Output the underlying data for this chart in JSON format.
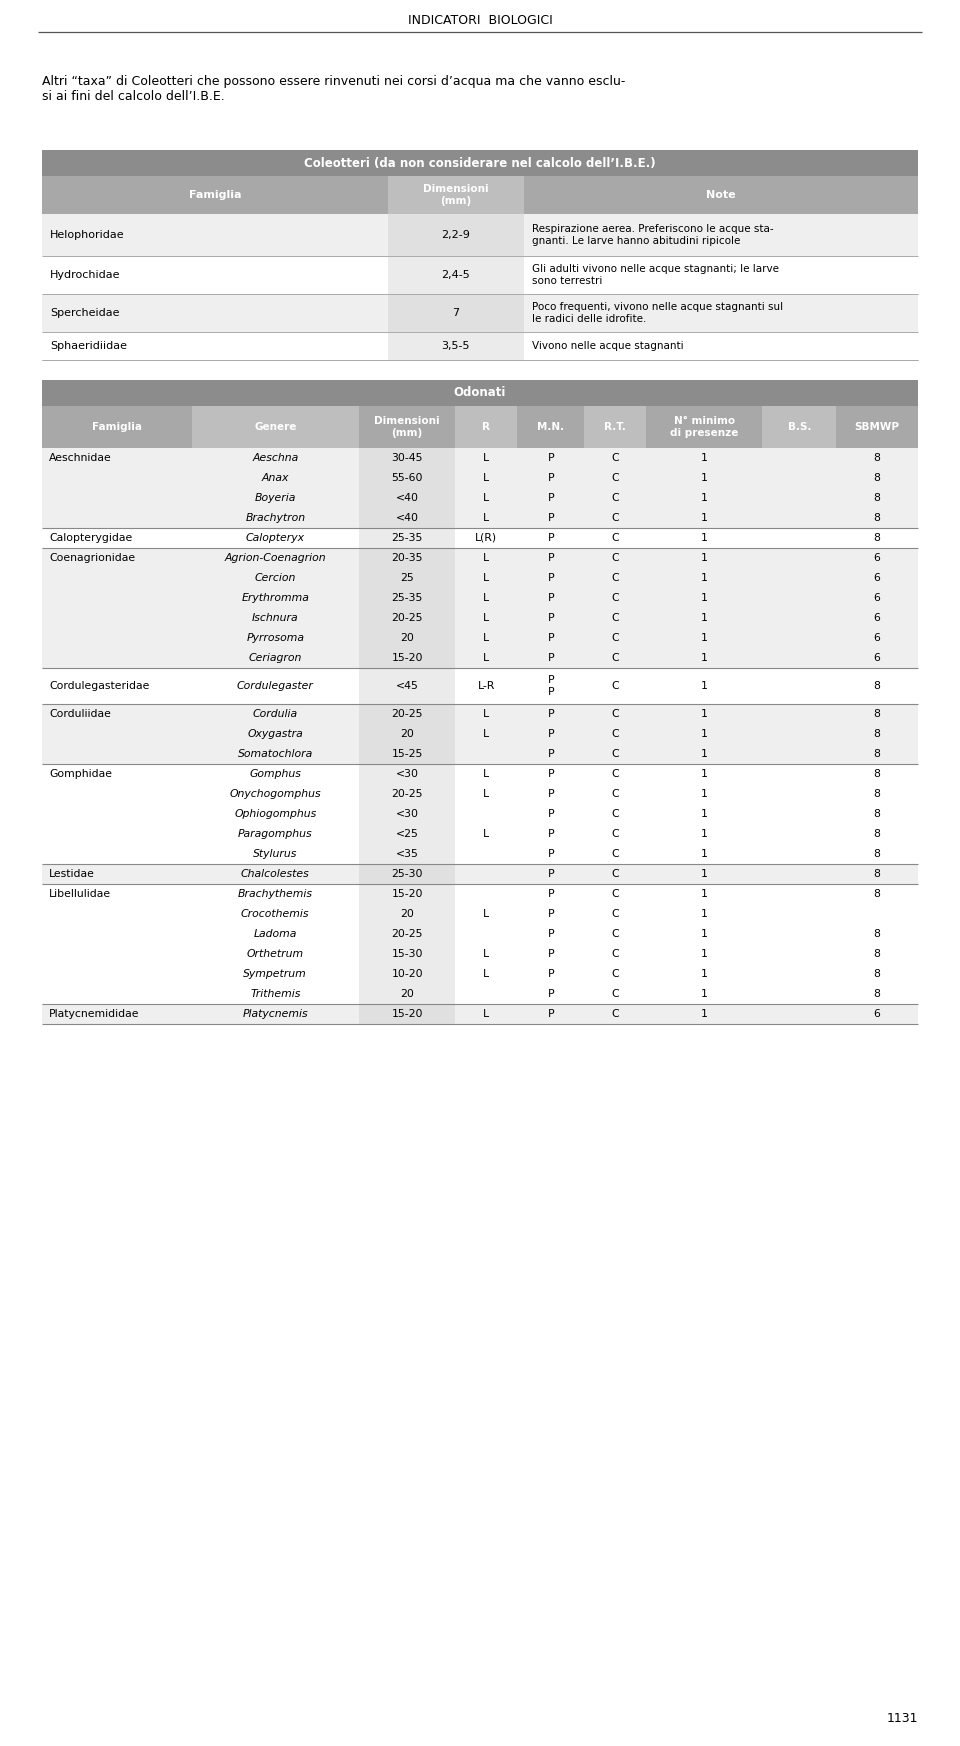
{
  "page_title": "INDICATORI  BIOLOGICI",
  "intro_text": "Altri “taxa” di Coleotteri che possono essere rinvenuti nei corsi d’acqua ma che vanno esclu-\nsi ai fini del calcolo dell’I.B.E.",
  "coleotteri_title": "Coleotteri (da non considerare nel calcolo dell’I.B.E.)",
  "odonati_title": "Odonati",
  "odonati_col_headers": [
    "Famiglia",
    "Genere",
    "Dimensioni\n(mm)",
    "R",
    "M.N.",
    "R.T.",
    "N° minimo\ndi presenze",
    "B.S.",
    "SBMWP"
  ],
  "coleotteri_rows": [
    {
      "famiglia": "Helophoridae",
      "dim": "2,2-9",
      "note": "Respirazione aerea. Preferiscono le acque sta-\ngnanti. Le larve hanno abitudini ripicole"
    },
    {
      "famiglia": "Hydrochidae",
      "dim": "2,4-5",
      "note": "Gli adulti vivono nelle acque stagnanti; le larve\nsono terrestri"
    },
    {
      "famiglia": "Spercheidae",
      "dim": "7",
      "note": "Poco frequenti, vivono nelle acque stagnanti sul\nle radici delle idrofite."
    },
    {
      "famiglia": "Sphaeridiidae",
      "dim": "3,5-5",
      "note": "Vivono nelle acque stagnanti"
    }
  ],
  "odonati_rows": [
    {
      "famiglia": "Aeschnidae",
      "genere": "Aeschna",
      "dim": "30-45",
      "R": "L",
      "MN": "P",
      "RT": "C",
      "Nmin": "1",
      "BS": "",
      "SBMWP": "8"
    },
    {
      "famiglia": "",
      "genere": "Anax",
      "dim": "55-60",
      "R": "L",
      "MN": "P",
      "RT": "C",
      "Nmin": "1",
      "BS": "",
      "SBMWP": "8"
    },
    {
      "famiglia": "",
      "genere": "Boyeria",
      "dim": "<40",
      "R": "L",
      "MN": "P",
      "RT": "C",
      "Nmin": "1",
      "BS": "",
      "SBMWP": "8"
    },
    {
      "famiglia": "",
      "genere": "Brachytron",
      "dim": "<40",
      "R": "L",
      "MN": "P",
      "RT": "C",
      "Nmin": "1",
      "BS": "",
      "SBMWP": "8"
    },
    {
      "famiglia": "Calopterygidae",
      "genere": "Calopteryx",
      "dim": "25-35",
      "R": "L(R)",
      "MN": "P",
      "RT": "C",
      "Nmin": "1",
      "BS": "",
      "SBMWP": "8"
    },
    {
      "famiglia": "Coenagrionidae",
      "genere": "Agrion-Coenagrion",
      "dim": "20-35",
      "R": "L",
      "MN": "P",
      "RT": "C",
      "Nmin": "1",
      "BS": "",
      "SBMWP": "6"
    },
    {
      "famiglia": "",
      "genere": "Cercion",
      "dim": "25",
      "R": "L",
      "MN": "P",
      "RT": "C",
      "Nmin": "1",
      "BS": "",
      "SBMWP": "6"
    },
    {
      "famiglia": "",
      "genere": "Erythromma",
      "dim": "25-35",
      "R": "L",
      "MN": "P",
      "RT": "C",
      "Nmin": "1",
      "BS": "",
      "SBMWP": "6"
    },
    {
      "famiglia": "",
      "genere": "Ischnura",
      "dim": "20-25",
      "R": "L",
      "MN": "P",
      "RT": "C",
      "Nmin": "1",
      "BS": "",
      "SBMWP": "6"
    },
    {
      "famiglia": "",
      "genere": "Pyrrosoma",
      "dim": "20",
      "R": "L",
      "MN": "P",
      "RT": "C",
      "Nmin": "1",
      "BS": "",
      "SBMWP": "6"
    },
    {
      "famiglia": "",
      "genere": "Ceriagron",
      "dim": "15-20",
      "R": "L",
      "MN": "P",
      "RT": "C",
      "Nmin": "1",
      "BS": "",
      "SBMWP": "6"
    },
    {
      "famiglia": "Cordulegasteridae",
      "genere": "Cordulegaster",
      "dim": "<45",
      "R": "L-R",
      "MN": "P\nP",
      "RT": "C",
      "Nmin": "1",
      "BS": "",
      "SBMWP": "8"
    },
    {
      "famiglia": "Corduliidae",
      "genere": "Cordulia",
      "dim": "20-25",
      "R": "L",
      "MN": "P",
      "RT": "C",
      "Nmin": "1",
      "BS": "",
      "SBMWP": "8"
    },
    {
      "famiglia": "",
      "genere": "Oxygastra",
      "dim": "20",
      "R": "L",
      "MN": "P",
      "RT": "C",
      "Nmin": "1",
      "BS": "",
      "SBMWP": "8"
    },
    {
      "famiglia": "",
      "genere": "Somatochlora",
      "dim": "15-25",
      "R": "",
      "MN": "P",
      "RT": "C",
      "Nmin": "1",
      "BS": "",
      "SBMWP": "8"
    },
    {
      "famiglia": "Gomphidae",
      "genere": "Gomphus",
      "dim": "<30",
      "R": "L",
      "MN": "P",
      "RT": "C",
      "Nmin": "1",
      "BS": "",
      "SBMWP": "8"
    },
    {
      "famiglia": "",
      "genere": "Onychogomphus",
      "dim": "20-25",
      "R": "L",
      "MN": "P",
      "RT": "C",
      "Nmin": "1",
      "BS": "",
      "SBMWP": "8"
    },
    {
      "famiglia": "",
      "genere": "Ophiogomphus",
      "dim": "<30",
      "R": "",
      "MN": "P",
      "RT": "C",
      "Nmin": "1",
      "BS": "",
      "SBMWP": "8"
    },
    {
      "famiglia": "",
      "genere": "Paragomphus",
      "dim": "<25",
      "R": "L",
      "MN": "P",
      "RT": "C",
      "Nmin": "1",
      "BS": "",
      "SBMWP": "8"
    },
    {
      "famiglia": "",
      "genere": "Stylurus",
      "dim": "<35",
      "R": "",
      "MN": "P",
      "RT": "C",
      "Nmin": "1",
      "BS": "",
      "SBMWP": "8"
    },
    {
      "famiglia": "Lestidae",
      "genere": "Chalcolestes",
      "dim": "25-30",
      "R": "",
      "MN": "P",
      "RT": "C",
      "Nmin": "1",
      "BS": "",
      "SBMWP": "8"
    },
    {
      "famiglia": "Libellulidae",
      "genere": "Brachythemis",
      "dim": "15-20",
      "R": "",
      "MN": "P",
      "RT": "C",
      "Nmin": "1",
      "BS": "",
      "SBMWP": "8"
    },
    {
      "famiglia": "",
      "genere": "Crocothemis",
      "dim": "20",
      "R": "L",
      "MN": "P",
      "RT": "C",
      "Nmin": "1",
      "BS": "",
      "SBMWP": ""
    },
    {
      "famiglia": "",
      "genere": "Ladoma",
      "dim": "20-25",
      "R": "",
      "MN": "P",
      "RT": "C",
      "Nmin": "1",
      "BS": "",
      "SBMWP": "8"
    },
    {
      "famiglia": "",
      "genere": "Orthetrum",
      "dim": "15-30",
      "R": "L",
      "MN": "P",
      "RT": "C",
      "Nmin": "1",
      "BS": "",
      "SBMWP": "8"
    },
    {
      "famiglia": "",
      "genere": "Sympetrum",
      "dim": "10-20",
      "R": "L",
      "MN": "P",
      "RT": "C",
      "Nmin": "1",
      "BS": "",
      "SBMWP": "8"
    },
    {
      "famiglia": "",
      "genere": "Trithemis",
      "dim": "20",
      "R": "",
      "MN": "P",
      "RT": "C",
      "Nmin": "1",
      "BS": "",
      "SBMWP": "8"
    },
    {
      "famiglia": "Platycnemididae",
      "genere": "Platycnemis",
      "dim": "15-20",
      "R": "L",
      "MN": "P",
      "RT": "C",
      "Nmin": "1",
      "BS": "",
      "SBMWP": "6"
    }
  ],
  "page_number": "1131",
  "bg_color": "#ffffff",
  "header_dark": "#8c8c8c",
  "header_medium": "#a8a8a8",
  "header_light": "#bebebe",
  "row_light": "#efefef",
  "row_white": "#ffffff",
  "dim_shaded_light": "#e0e0e0",
  "dim_shaded_white": "#ebebeb",
  "sep_color": "#aaaaaa",
  "family_sep_color": "#888888",
  "title_fs": 9,
  "intro_fs": 9,
  "table_hdr_fs": 8,
  "table_data_fs": 8,
  "odon_hdr_fs": 7.5,
  "odon_data_fs": 7.8
}
